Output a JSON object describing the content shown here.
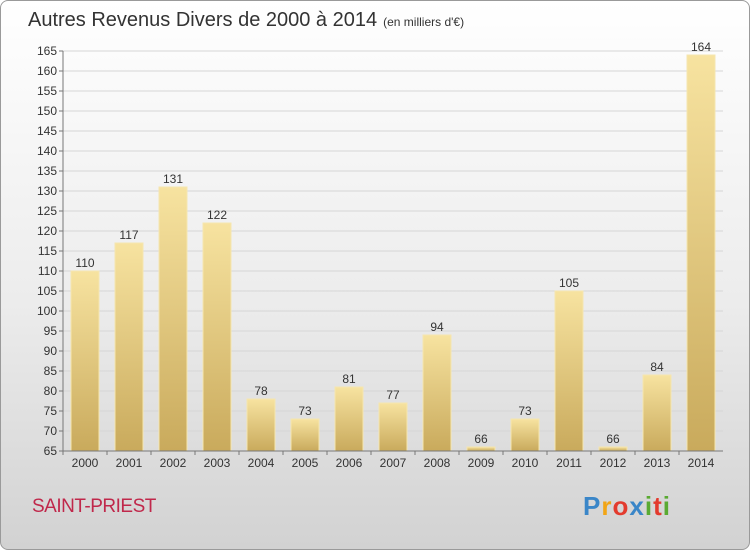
{
  "title": "Autres Revenus Divers de 2000 à 2014",
  "unit_note": "(en milliers d'€)",
  "commune": "SAINT-PRIEST",
  "logo": {
    "letters": [
      "P",
      "r",
      "o",
      "x",
      "i",
      "t",
      "i"
    ],
    "colors": [
      "#3a86c8",
      "#f2a516",
      "#e33b2e",
      "#3a86c8",
      "#5aaa32",
      "#e33b2e",
      "#5aaa32"
    ]
  },
  "chart_data": {
    "type": "bar",
    "categories": [
      "2000",
      "2001",
      "2002",
      "2003",
      "2004",
      "2005",
      "2006",
      "2007",
      "2008",
      "2009",
      "2010",
      "2011",
      "2012",
      "2013",
      "2014"
    ],
    "values": [
      110,
      117,
      131,
      122,
      78,
      73,
      81,
      77,
      94,
      66,
      73,
      105,
      66,
      84,
      164
    ],
    "ylim": [
      65,
      165
    ],
    "yticks": [
      65,
      70,
      75,
      80,
      85,
      90,
      95,
      100,
      105,
      110,
      115,
      120,
      125,
      130,
      135,
      140,
      145,
      150,
      155,
      160,
      165
    ],
    "grid": true,
    "bar_color": "#e8cf86"
  }
}
